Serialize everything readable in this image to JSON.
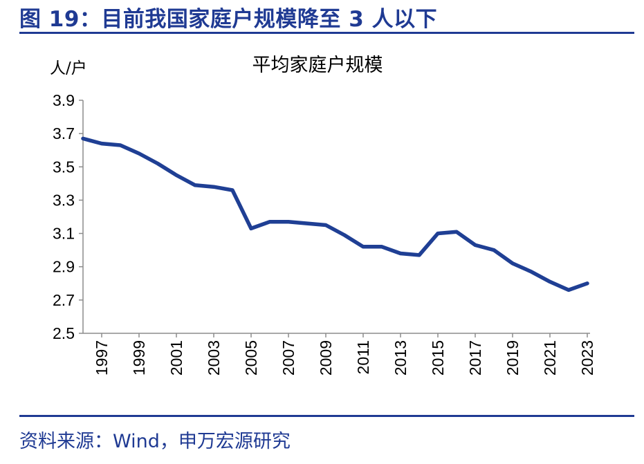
{
  "figure": {
    "title": "图 19：目前我国家庭户规模降至 3 人以下",
    "source": "资料来源：Wind，申万宏源研究"
  },
  "colors": {
    "accent": "#1f3a93",
    "series": "#1f3f94"
  },
  "chart_data": {
    "type": "line",
    "title": "平均家庭户规模",
    "ylabel": "人/户",
    "xlabel": "",
    "ylim": [
      2.5,
      3.9
    ],
    "yticks": [
      "2.5",
      "2.7",
      "2.9",
      "3.1",
      "3.3",
      "3.5",
      "3.7",
      "3.9"
    ],
    "xticks": [
      "1997",
      "1999",
      "2001",
      "2003",
      "2005",
      "2007",
      "2009",
      "2011",
      "2013",
      "2015",
      "2017",
      "2019",
      "2021",
      "2023"
    ],
    "x": [
      1996,
      1997,
      1998,
      1999,
      2000,
      2001,
      2002,
      2003,
      2004,
      2005,
      2006,
      2007,
      2008,
      2009,
      2010,
      2011,
      2012,
      2013,
      2014,
      2015,
      2016,
      2017,
      2018,
      2019,
      2020,
      2021,
      2022,
      2023
    ],
    "series": [
      {
        "values": [
          3.67,
          3.64,
          3.63,
          3.58,
          3.52,
          3.45,
          3.39,
          3.38,
          3.36,
          3.13,
          3.17,
          3.17,
          3.16,
          3.15,
          3.09,
          3.02,
          3.02,
          2.98,
          2.97,
          3.1,
          3.11,
          3.03,
          3.0,
          2.92,
          2.87,
          2.81,
          2.76,
          2.8
        ]
      }
    ],
    "grid": false,
    "legend": "none"
  }
}
